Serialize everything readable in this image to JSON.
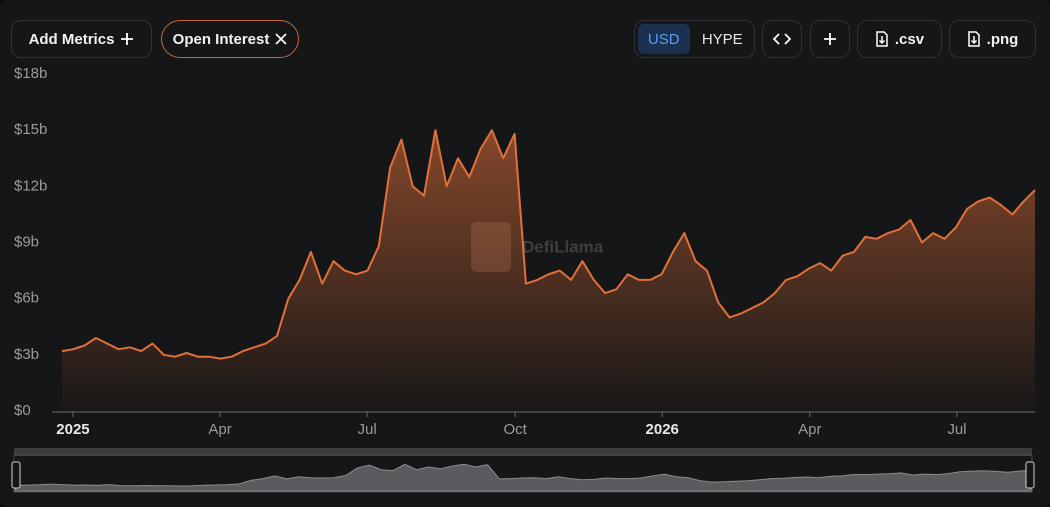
{
  "toolbar": {
    "add_metrics": "Add Metrics",
    "metric": "Open Interest",
    "currencies": [
      "USD",
      "HYPE"
    ],
    "csv": ".csv",
    "png": ".png"
  },
  "chart_data": {
    "type": "area",
    "watermark": "DefiLlama",
    "color": "#e2703a",
    "series": [
      {
        "name": "Open Interest",
        "color": "#e2703a",
        "values": [
          3.2,
          3.3,
          3.5,
          3.9,
          3.6,
          3.3,
          3.4,
          3.2,
          3.6,
          3.0,
          2.9,
          3.1,
          2.9,
          2.9,
          2.8,
          2.9,
          3.2,
          3.4,
          3.6,
          4.0,
          6.0,
          7.0,
          8.5,
          6.8,
          8.0,
          7.5,
          7.3,
          7.5,
          8.8,
          13.0,
          14.5,
          12.0,
          11.5,
          15.0,
          12.0,
          13.5,
          12.5,
          14.0,
          15.0,
          13.5,
          14.8,
          6.8,
          7.0,
          7.3,
          7.5,
          7.0,
          8.0,
          7.0,
          6.3,
          6.5,
          7.3,
          7.0,
          7.0,
          7.3,
          8.5,
          9.5,
          8.0,
          7.5,
          5.8,
          5.0,
          5.2,
          5.5,
          5.8,
          6.3,
          7.0,
          7.2,
          7.6,
          7.9,
          7.5,
          8.3,
          8.5,
          9.3,
          9.2,
          9.5,
          9.7,
          10.2,
          9.0,
          9.5,
          9.2,
          9.8,
          10.8,
          11.2,
          11.4,
          11.0,
          10.5,
          11.2,
          11.8
        ]
      }
    ],
    "xlim": [
      0,
      86
    ],
    "xticks": [
      {
        "value": 0.97,
        "label": "2025"
      },
      {
        "value": 13.97,
        "label": "Apr"
      },
      {
        "value": 26.97,
        "label": "Jul"
      },
      {
        "value": 40.05,
        "label": "Oct"
      },
      {
        "value": 53.05,
        "label": "2026"
      },
      {
        "value": 66.1,
        "label": "Apr"
      },
      {
        "value": 79.1,
        "label": "Jul"
      }
    ],
    "ylim": [
      0,
      18
    ],
    "yticks": [
      {
        "value": 0,
        "label": "$0"
      },
      {
        "value": 3,
        "label": "$3b"
      },
      {
        "value": 6,
        "label": "$6b"
      },
      {
        "value": 9,
        "label": "$9b"
      },
      {
        "value": 12,
        "label": "$12b"
      },
      {
        "value": 15,
        "label": "$15b"
      },
      {
        "value": 18,
        "label": "$18b"
      }
    ]
  }
}
